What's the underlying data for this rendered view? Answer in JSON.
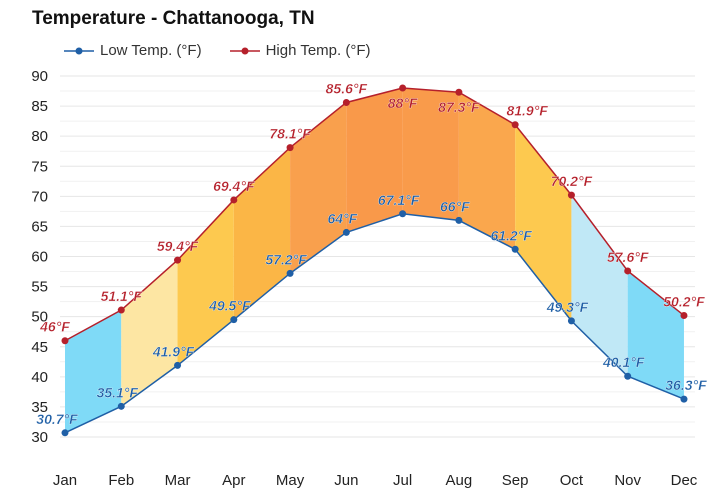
{
  "chart_data": {
    "type": "area",
    "title": "Temperature - Chattanooga, TN",
    "categories": [
      "Jan",
      "Feb",
      "Mar",
      "Apr",
      "May",
      "Jun",
      "Jul",
      "Aug",
      "Sep",
      "Oct",
      "Nov",
      "Dec"
    ],
    "series": [
      {
        "name": "Low Temp. (°F)",
        "color": "#1f5fa6",
        "values": [
          30.7,
          35.1,
          41.9,
          49.5,
          57.2,
          64,
          67.1,
          66,
          61.2,
          49.3,
          40.1,
          36.3
        ],
        "labels": [
          "30.7°F",
          "35.1°F",
          "41.9°F",
          "49.5°F",
          "57.2°F",
          "64°F",
          "67.1°F",
          "66°F",
          "61.2°F",
          "49.3°F",
          "40.1°F",
          "36.3°F"
        ]
      },
      {
        "name": "High Temp. (°F)",
        "color": "#b5202b",
        "values": [
          46,
          51.1,
          59.4,
          69.4,
          78.1,
          85.6,
          88,
          87.3,
          81.9,
          70.2,
          57.6,
          50.2
        ],
        "labels": [
          "46°F",
          "51.1°F",
          "59.4°F",
          "69.4°F",
          "78.1°F",
          "85.6°F",
          "88°F",
          "87.3°F",
          "81.9°F",
          "70.2°F",
          "57.6°F",
          "50.2°F"
        ]
      }
    ],
    "band_colors": [
      "#7fdaf7",
      "#fde6a3",
      "#fdc94f",
      "#fbb646",
      "#f9a04d",
      "#f9994a",
      "#f99b4b",
      "#faa74d",
      "#fdc94f",
      "#c0e8f6",
      "#7fdaf7"
    ],
    "yticks": [
      30,
      35,
      40,
      45,
      50,
      55,
      60,
      65,
      70,
      75,
      80,
      85,
      90
    ],
    "ylim": [
      30,
      90
    ],
    "grid": true,
    "legend": "top-left"
  }
}
